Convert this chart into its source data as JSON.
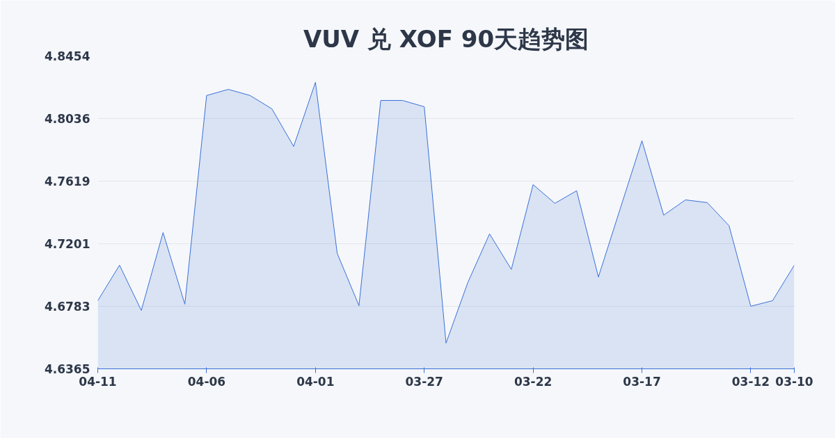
{
  "chart_data": {
    "type": "area",
    "title": "VUV 兑 XOF 90天趋势图",
    "categories": [
      "04-11",
      null,
      null,
      null,
      null,
      "04-06",
      null,
      null,
      null,
      null,
      "04-01",
      null,
      null,
      null,
      null,
      "03-27",
      null,
      null,
      null,
      null,
      "03-22",
      null,
      null,
      null,
      null,
      "03-17",
      null,
      null,
      null,
      null,
      "03-12",
      null,
      "03-10"
    ],
    "series": [
      {
        "color": "#3a6fd8",
        "values": [
          4.682,
          4.7057,
          4.6755,
          4.7275,
          4.6797,
          4.819,
          4.8231,
          4.819,
          4.8101,
          4.785,
          4.8278,
          4.7136,
          4.6787,
          4.8157,
          4.8157,
          4.8115,
          4.6537,
          4.6941,
          4.7266,
          4.7029,
          4.7595,
          4.747,
          4.7554,
          4.6978,
          4.7433,
          4.7888,
          4.7391,
          4.7493,
          4.7475,
          4.7321,
          4.6783,
          4.682,
          4.7057
        ]
      }
    ],
    "ylim": [
      4.6365,
      4.8454
    ],
    "yticks": [
      4.6365,
      4.6783,
      4.7201,
      4.7619,
      4.8036,
      4.8454
    ],
    "grid": "y"
  }
}
